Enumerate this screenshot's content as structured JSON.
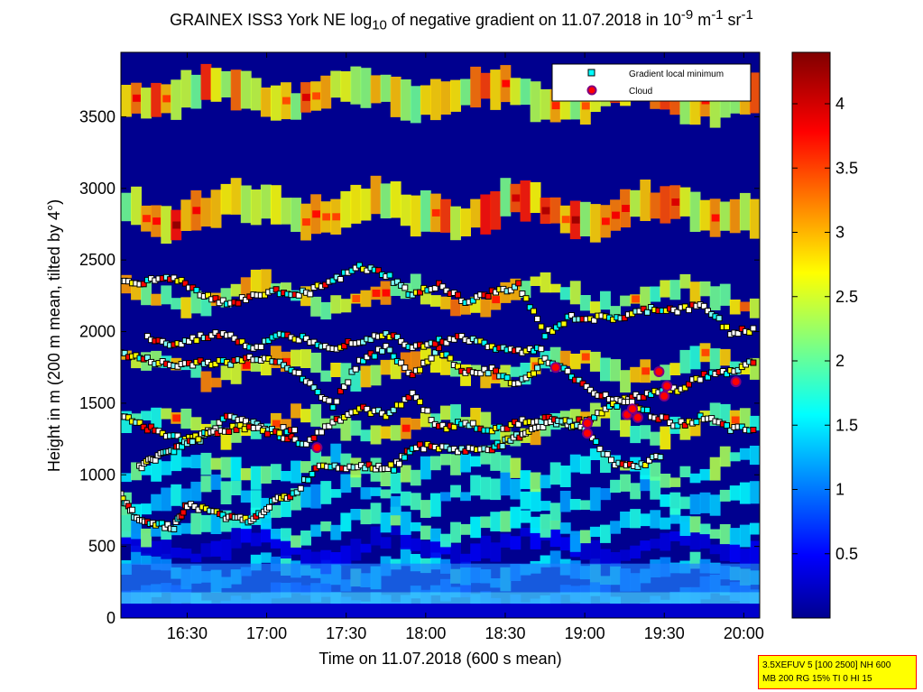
{
  "title": {
    "main": "GRAINEX ISS3 York NE log",
    "sub": "10",
    "rest": " of negative gradient on 11.07.2018 in 10",
    "exp1": "-9",
    "m": " m",
    "exp2": "-1",
    "sr": " sr",
    "exp3": "-1"
  },
  "info_box": {
    "line1": "3.5XEFUV 5 [100 2500] NH 600",
    "line2": "MB 200 RG 15% TI 0 HI 15"
  },
  "colors": {
    "deep_blue": "#000080",
    "blue": "#0000ff",
    "cyan": "#00ffff",
    "yellow": "#ffff00",
    "red": "#ff0000",
    "dark_red": "#800000",
    "gradient_marker": "#00ffff",
    "cloud_marker": "#ff0000",
    "cloud_edge": "#800080"
  },
  "chart_data": {
    "type": "heatmap",
    "xlabel": "Time on 11.07.2018 (600 s mean)",
    "ylabel_main": "Height in m (200 m mean, tilted by 4",
    "ylabel_end": "°)",
    "xlim_minutes": [
      965,
      1206
    ],
    "ylim": [
      0,
      3950
    ],
    "xticks": [
      {
        "label": "16:30",
        "value": 990
      },
      {
        "label": "17:00",
        "value": 1020
      },
      {
        "label": "17:30",
        "value": 1050
      },
      {
        "label": "18:00",
        "value": 1080
      },
      {
        "label": "18:30",
        "value": 1110
      },
      {
        "label": "19:00",
        "value": 1140
      },
      {
        "label": "19:30",
        "value": 1170
      },
      {
        "label": "20:00",
        "value": 1200
      }
    ],
    "yticks": [
      {
        "label": "0",
        "value": 0
      },
      {
        "label": "500",
        "value": 500
      },
      {
        "label": "1000",
        "value": 1000
      },
      {
        "label": "1500",
        "value": 1500
      },
      {
        "label": "2000",
        "value": 2000
      },
      {
        "label": "2500",
        "value": 2500
      },
      {
        "label": "3000",
        "value": 3000
      },
      {
        "label": "3500",
        "value": 3500
      }
    ],
    "colorbar": {
      "range": [
        0,
        4.4
      ],
      "ticks": [
        {
          "label": "0.5",
          "value": 0.5
        },
        {
          "label": "1",
          "value": 1
        },
        {
          "label": "1.5",
          "value": 1.5
        },
        {
          "label": "2",
          "value": 2
        },
        {
          "label": "2.5",
          "value": 2.5
        },
        {
          "label": "3",
          "value": 3
        },
        {
          "label": "3.5",
          "value": 3.5
        },
        {
          "label": "4",
          "value": 4
        }
      ]
    },
    "legend": {
      "placement": "top-right",
      "entries": [
        {
          "label": "Gradient local minimum",
          "marker": "square"
        },
        {
          "label": "Cloud",
          "marker": "circle"
        }
      ]
    },
    "layers": [
      {
        "height": 130,
        "value": 1.0
      },
      {
        "height": 330,
        "value": 1.6
      },
      {
        "height": 500,
        "value": 0.4
      },
      {
        "height": 640,
        "value": 1.8
      },
      {
        "height": 850,
        "value": 1.7
      },
      {
        "height": 1050,
        "value": 2.0
      },
      {
        "height": 1350,
        "value": 2.6
      },
      {
        "height": 1750,
        "value": 2.7
      },
      {
        "height": 2250,
        "value": 2.8
      },
      {
        "height": 2850,
        "value": 3.1
      },
      {
        "height": 3650,
        "value": 3.0
      }
    ],
    "gradient_minimum_traces": [
      {
        "points": [
          [
            965,
            1850
          ],
          [
            975,
            1800
          ],
          [
            985,
            1760
          ],
          [
            995,
            1790
          ],
          [
            1005,
            1780
          ],
          [
            1015,
            1820
          ],
          [
            1025,
            1800
          ],
          [
            1035,
            1650
          ],
          [
            1045,
            1480
          ],
          [
            1055,
            1800
          ],
          [
            1065,
            1880
          ],
          [
            1075,
            1700
          ],
          [
            1085,
            1870
          ],
          [
            1095,
            1720
          ],
          [
            1105,
            1730
          ],
          [
            1115,
            1630
          ],
          [
            1125,
            1800
          ],
          [
            1135,
            1700
          ],
          [
            1145,
            1560
          ],
          [
            1155,
            1520
          ],
          [
            1165,
            1570
          ],
          [
            1175,
            1600
          ],
          [
            1185,
            1690
          ],
          [
            1195,
            1720
          ],
          [
            1205,
            1800
          ]
        ]
      },
      {
        "points": [
          [
            965,
            1420
          ],
          [
            975,
            1330
          ],
          [
            985,
            1260
          ],
          [
            995,
            1250
          ],
          [
            1005,
            1400
          ],
          [
            1015,
            1350
          ],
          [
            1025,
            1280
          ],
          [
            1035,
            1220
          ],
          [
            1045,
            1370
          ],
          [
            1055,
            1460
          ],
          [
            1065,
            1420
          ],
          [
            1075,
            1570
          ],
          [
            1085,
            1330
          ],
          [
            1095,
            1360
          ],
          [
            1105,
            1300
          ],
          [
            1115,
            1370
          ],
          [
            1125,
            1390
          ],
          [
            1135,
            1350
          ],
          [
            1145,
            1420
          ],
          [
            1155,
            1520
          ],
          [
            1165,
            1420
          ],
          [
            1175,
            1350
          ],
          [
            1185,
            1400
          ],
          [
            1195,
            1320
          ],
          [
            1205,
            1310
          ]
        ]
      },
      {
        "points": [
          [
            965,
            850
          ],
          [
            970,
            720
          ],
          [
            977,
            660
          ],
          [
            985,
            640
          ],
          [
            990,
            790
          ],
          [
            1000,
            740
          ],
          [
            1008,
            690
          ],
          [
            1015,
            680
          ],
          [
            1022,
            810
          ],
          [
            1030,
            860
          ],
          [
            1040,
            1070
          ],
          [
            1050,
            1060
          ],
          [
            1060,
            1060
          ],
          [
            1068,
            1050
          ],
          [
            1075,
            1200
          ],
          [
            1085,
            1190
          ],
          [
            1095,
            1170
          ],
          [
            1105,
            1190
          ],
          [
            1112,
            1240
          ],
          [
            1120,
            1320
          ],
          [
            1130,
            1380
          ],
          [
            1140,
            1330
          ],
          [
            1150,
            1090
          ],
          [
            1160,
            1060
          ],
          [
            1170,
            1150
          ]
        ]
      },
      {
        "points": [
          [
            965,
            2350
          ],
          [
            975,
            2350
          ],
          [
            985,
            2380
          ],
          [
            995,
            2270
          ],
          [
            1005,
            2190
          ],
          [
            1015,
            2250
          ],
          [
            1025,
            2280
          ],
          [
            1035,
            2270
          ],
          [
            1045,
            2350
          ],
          [
            1055,
            2450
          ],
          [
            1065,
            2400
          ],
          [
            1075,
            2250
          ],
          [
            1085,
            2330
          ],
          [
            1095,
            2200
          ],
          [
            1105,
            2270
          ],
          [
            1115,
            2320
          ],
          [
            1125,
            1980
          ],
          [
            1135,
            2100
          ],
          [
            1145,
            2090
          ],
          [
            1155,
            2100
          ],
          [
            1165,
            2160
          ],
          [
            1175,
            2150
          ],
          [
            1185,
            2180
          ],
          [
            1195,
            2000
          ],
          [
            1205,
            2010
          ]
        ]
      },
      {
        "points": [
          [
            975,
            1960
          ],
          [
            985,
            1900
          ],
          [
            995,
            1960
          ],
          [
            1005,
            1990
          ],
          [
            1015,
            1880
          ],
          [
            1025,
            1970
          ],
          [
            1035,
            1950
          ],
          [
            1045,
            1890
          ],
          [
            1055,
            1940
          ],
          [
            1065,
            1990
          ],
          [
            1075,
            1900
          ],
          [
            1085,
            1930
          ],
          [
            1095,
            1960
          ],
          [
            1105,
            1890
          ],
          [
            1115,
            1860
          ],
          [
            1125,
            1900
          ]
        ]
      },
      {
        "points": [
          [
            972,
            1050
          ],
          [
            978,
            1120
          ],
          [
            985,
            1180
          ],
          [
            992,
            1250
          ],
          [
            1000,
            1300
          ],
          [
            1010,
            1330
          ],
          [
            1022,
            1300
          ],
          [
            1032,
            1330
          ]
        ]
      }
    ],
    "clouds": [
      {
        "x": 1039,
        "y": 1190
      },
      {
        "x": 1129,
        "y": 1750
      },
      {
        "x": 1141,
        "y": 1360
      },
      {
        "x": 1141,
        "y": 1290
      },
      {
        "x": 1156,
        "y": 1420
      },
      {
        "x": 1158,
        "y": 1460
      },
      {
        "x": 1160,
        "y": 1400
      },
      {
        "x": 1168,
        "y": 1720
      },
      {
        "x": 1170,
        "y": 1550
      },
      {
        "x": 1171,
        "y": 1620
      },
      {
        "x": 1197,
        "y": 1650
      }
    ]
  }
}
